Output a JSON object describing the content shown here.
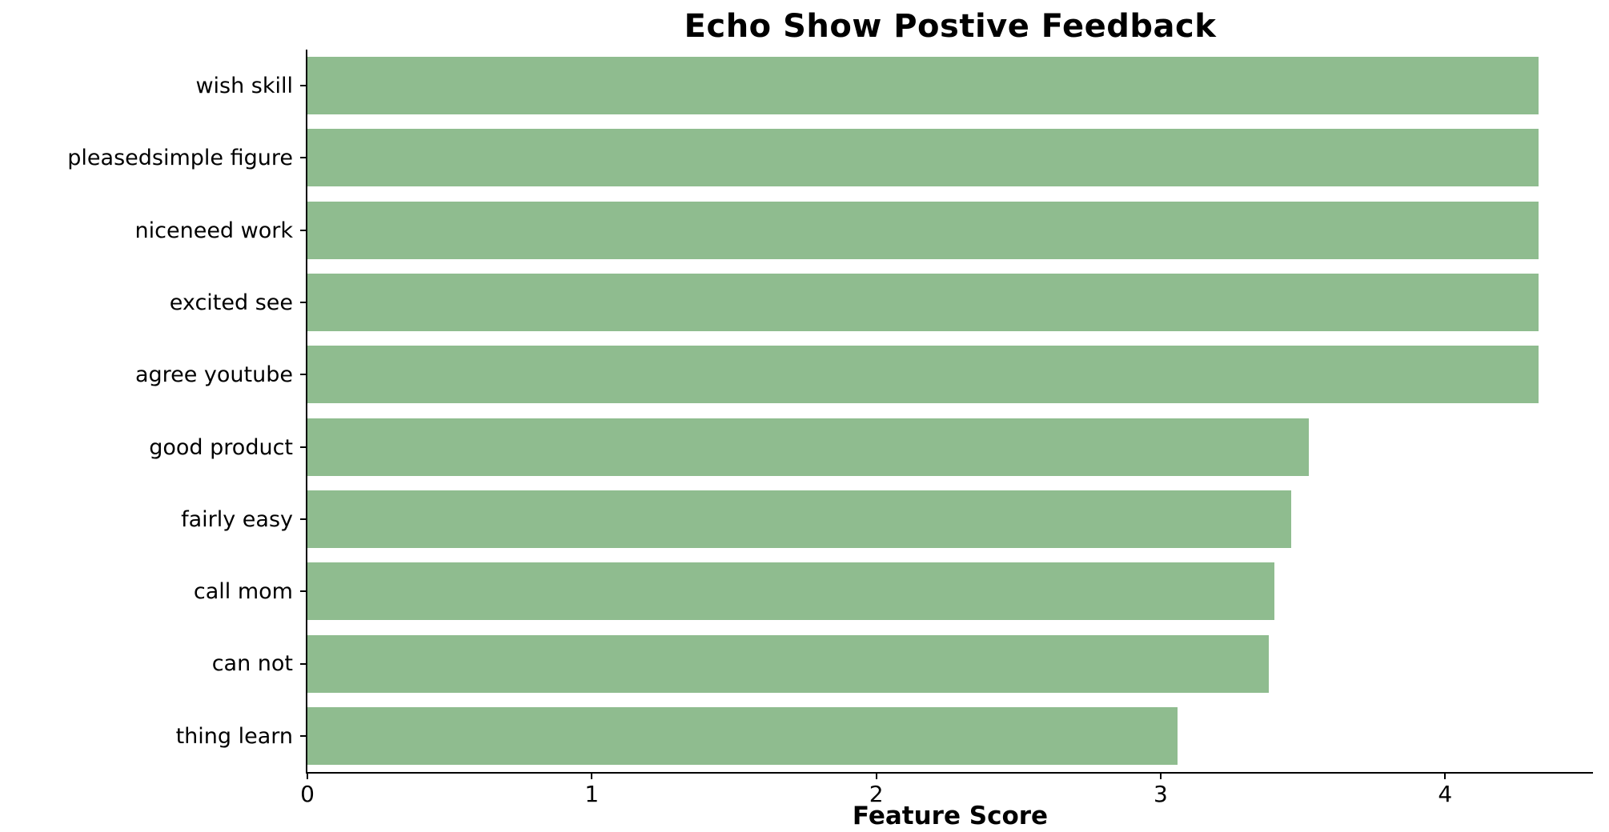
{
  "title": "Echo Show Postive Feedback",
  "chart_data": {
    "type": "bar",
    "orientation": "horizontal",
    "title": "Echo Show Postive Feedback",
    "xlabel": "Feature Score",
    "ylabel": "",
    "categories": [
      "wish skill",
      "pleasedsimple figure",
      "niceneed work",
      "excited see",
      "agree youtube",
      "good product",
      "fairly easy",
      "call mom",
      "can not",
      "thing learn"
    ],
    "values": [
      4.33,
      4.33,
      4.33,
      4.33,
      4.33,
      3.52,
      3.46,
      3.4,
      3.38,
      3.06
    ],
    "xlim": [
      0,
      4.52
    ],
    "xticks": [
      0,
      1,
      2,
      3,
      4
    ],
    "bar_color": "#8FBC8F",
    "axis_color": "#000000",
    "grid": false,
    "legend": "none"
  }
}
